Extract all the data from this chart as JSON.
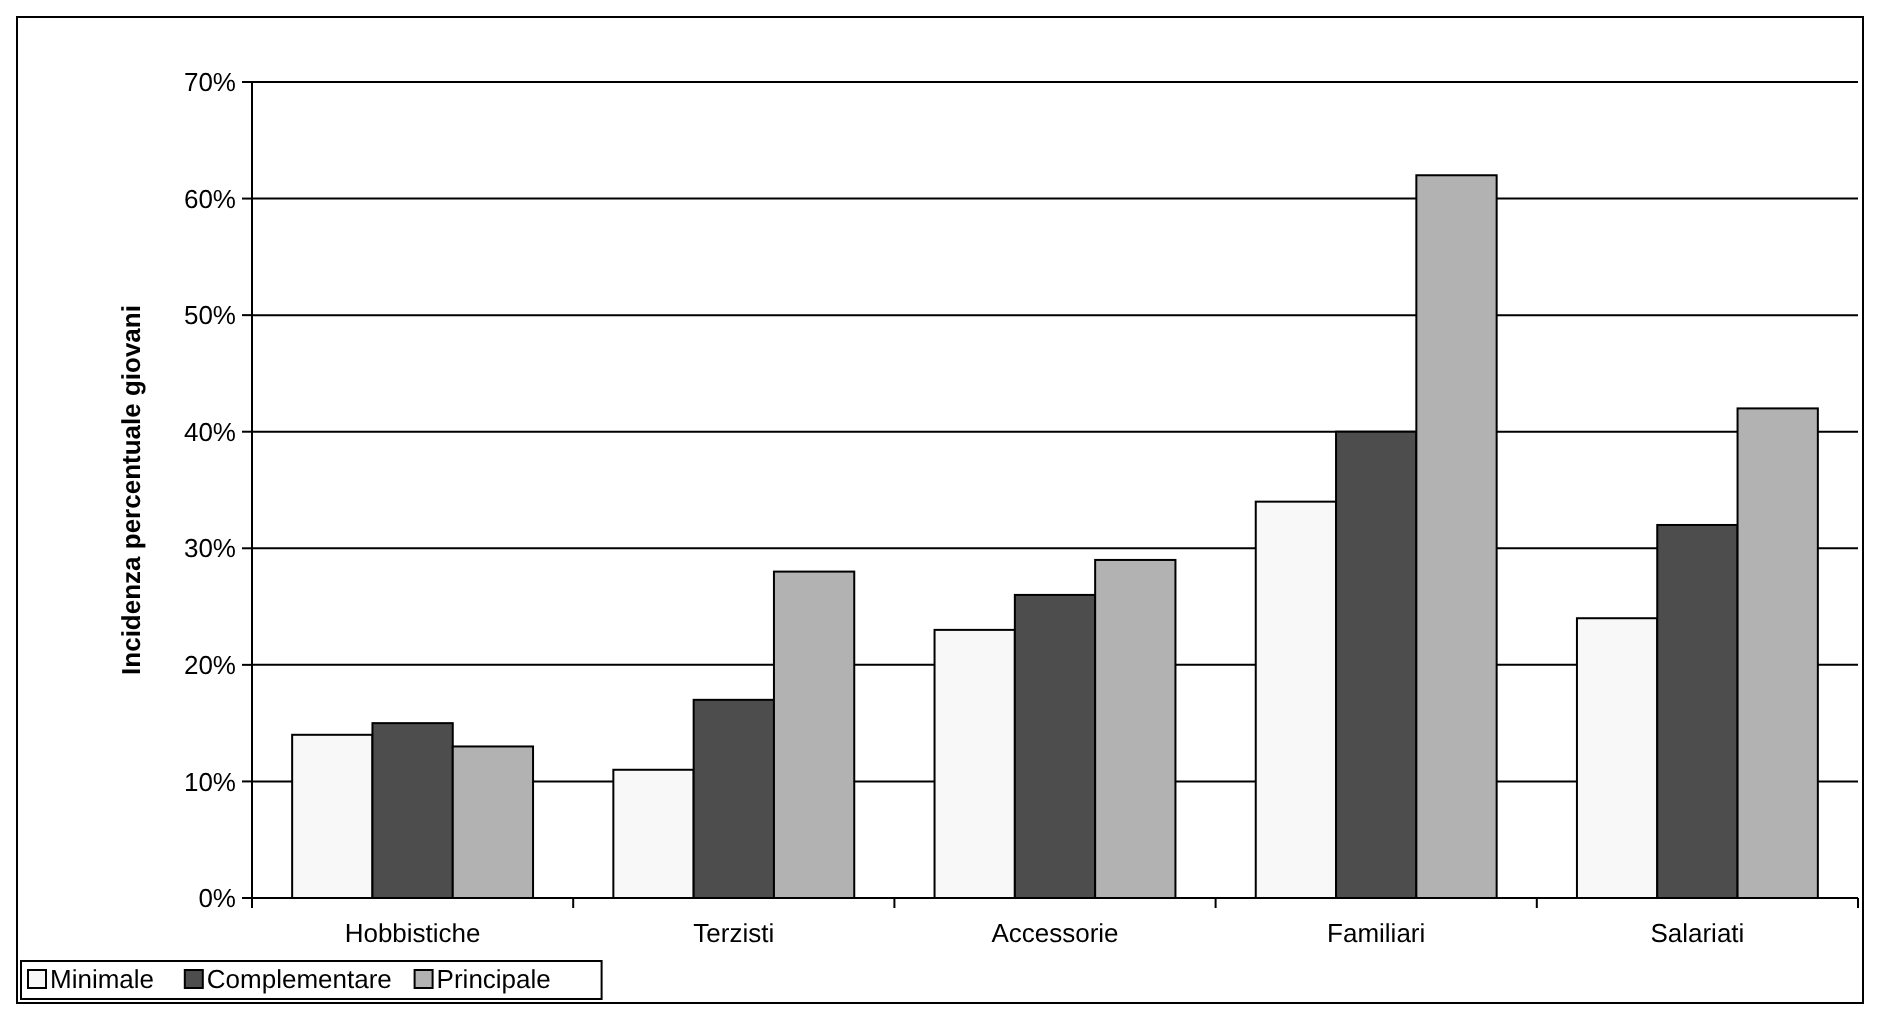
{
  "chart_data": {
    "type": "bar",
    "ylabel": "Incidenza percentuale giovani",
    "categories": [
      "Hobbistiche",
      "Terzisti",
      "Accessorie",
      "Familiari",
      "Salariati"
    ],
    "series": [
      {
        "name": "Minimale",
        "color": "#f8f8f8",
        "values": [
          14,
          11,
          23,
          34,
          24
        ]
      },
      {
        "name": "Complementare",
        "color": "#4d4d4d",
        "values": [
          15,
          17,
          26,
          40,
          32
        ]
      },
      {
        "name": "Principale",
        "color": "#b2b2b2",
        "values": [
          13,
          28,
          29,
          62,
          42
        ]
      }
    ],
    "ylim": [
      0,
      70
    ],
    "yticks": [
      {
        "value": 0,
        "label": "0%"
      },
      {
        "value": 10,
        "label": "10%"
      },
      {
        "value": 20,
        "label": "20%"
      },
      {
        "value": 30,
        "label": "30%"
      },
      {
        "value": 40,
        "label": "40%"
      },
      {
        "value": 50,
        "label": "50%"
      },
      {
        "value": 60,
        "label": "60%"
      },
      {
        "value": 70,
        "label": "70%"
      }
    ],
    "grid": "y",
    "legend": "bottom left"
  }
}
